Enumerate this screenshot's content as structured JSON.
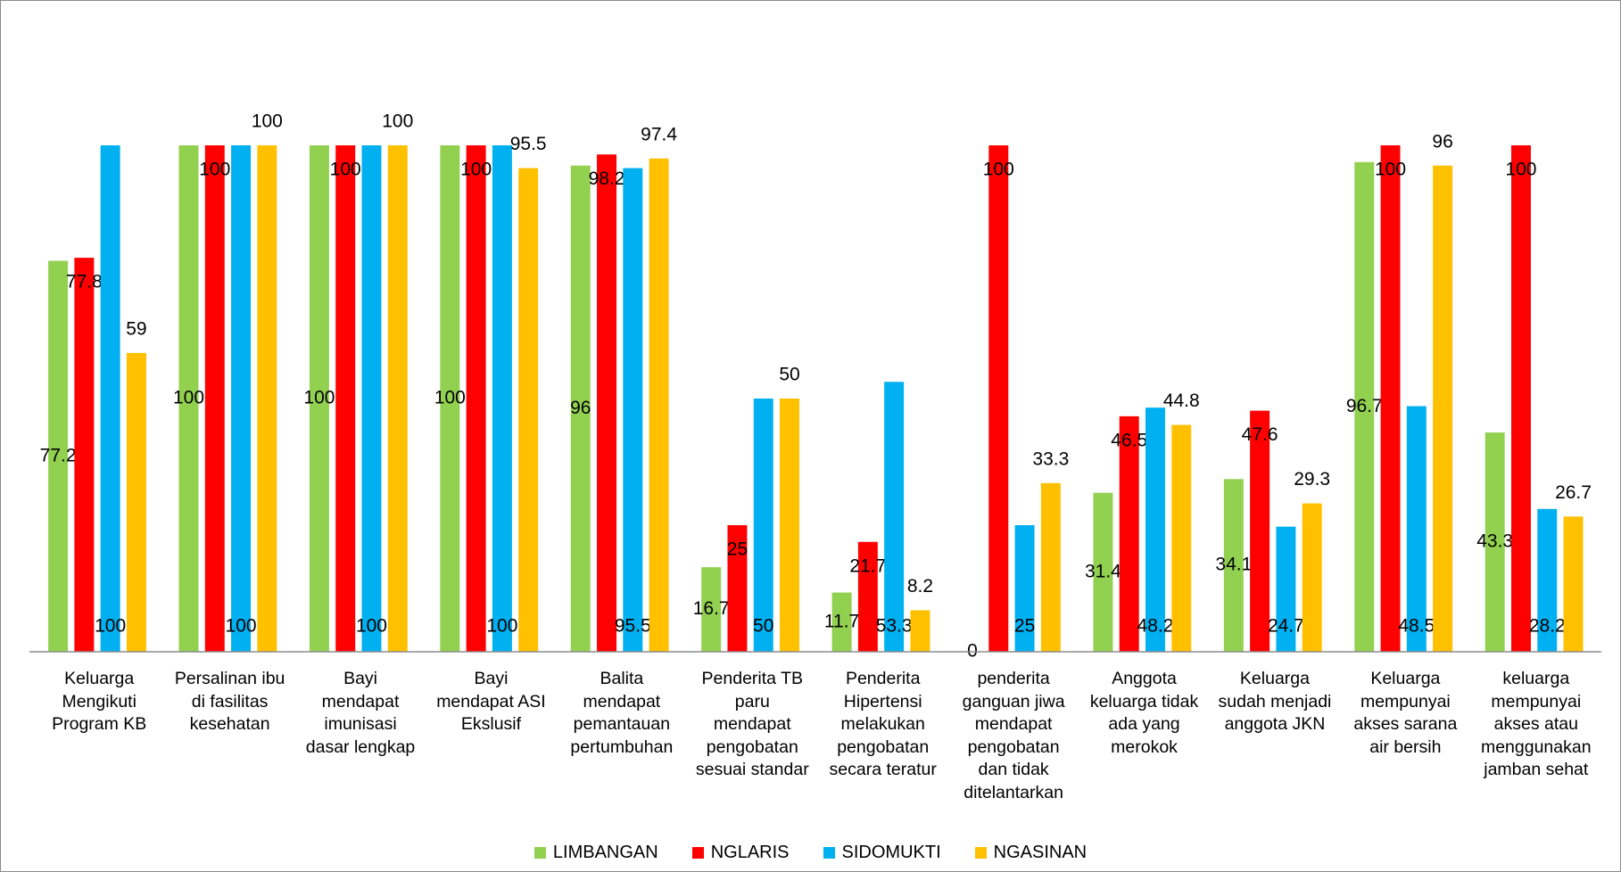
{
  "chart_data": {
    "type": "bar",
    "categories": [
      "Keluarga\nMengikuti\nProgram KB",
      "Persalinan ibu\ndi fasilitas\nkesehatan",
      "Bayi\nmendapat\nimunisasi\ndasar lengkap",
      "Bayi\nmendapat ASI\nEkslusif",
      "Balita\nmendapat\npemantauan\npertumbuhan",
      "Penderita TB\nparu\nmendapat\npengobatan\nsesuai standar",
      "Penderita\nHipertensi\nmelakukan\npengobatan\nsecara teratur",
      "penderita\nganguan jiwa\nmendapat\npengobatan\ndan tidak\nditelantarkan",
      "Anggota\nkeluarga tidak\nada yang\nmerokok",
      "Keluarga\nsudah menjadi\nanggota JKN",
      "Keluarga\nmempunyai\nakses sarana\nair bersih",
      "keluarga\nmempunyai\nakses atau\nmenggunakan\njamban sehat"
    ],
    "series": [
      {
        "name": "LIMBANGAN",
        "color": "#92d050",
        "values": [
          77.2,
          100,
          100,
          100,
          96,
          16.7,
          11.7,
          0,
          31.4,
          34.1,
          96.7,
          43.3
        ]
      },
      {
        "name": "NGLARIS",
        "color": "#ff0000",
        "values": [
          77.8,
          100,
          100,
          100,
          98.2,
          25,
          21.7,
          100,
          46.5,
          47.6,
          100,
          100
        ]
      },
      {
        "name": "SIDOMUKTI",
        "color": "#00b0f0",
        "values": [
          100,
          100,
          100,
          100,
          95.5,
          50,
          53.3,
          25,
          48.2,
          24.7,
          48.5,
          28.2
        ]
      },
      {
        "name": "NGASINAN",
        "color": "#ffc000",
        "values": [
          59,
          100,
          100,
          95.5,
          97.4,
          50,
          8.2,
          33.3,
          44.8,
          29.3,
          96,
          26.7
        ]
      }
    ],
    "ylim": [
      0,
      100
    ],
    "legend": "bottom"
  }
}
